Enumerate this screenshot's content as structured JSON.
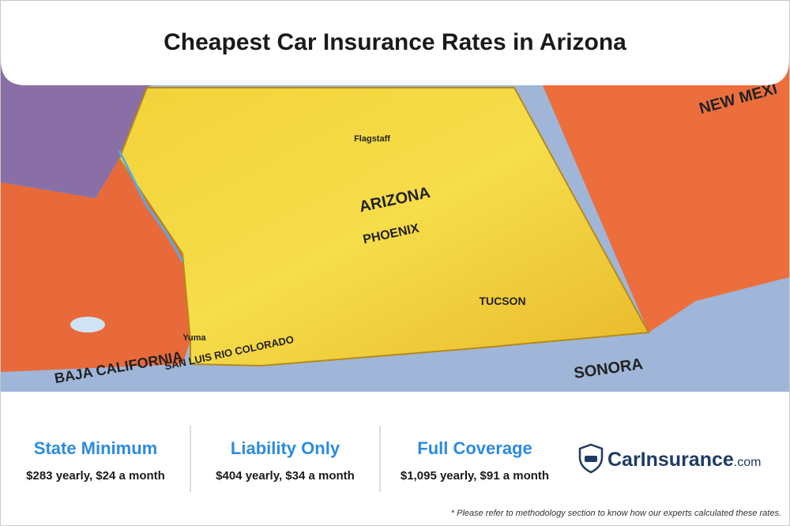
{
  "header": {
    "title": "Cheapest Car Insurance Rates in Arizona"
  },
  "map": {
    "labels": [
      "ARIZONA",
      "PHOENIX",
      "TUCSON",
      "NEW MEXI",
      "SONORA",
      "BAJA CALIFORNIA",
      "SAN LUIS RIO COLORADO",
      "Flagstaff",
      "Yuma"
    ]
  },
  "rates": [
    {
      "title": "State Minimum",
      "value": "$283 yearly, $24 a month"
    },
    {
      "title": "Liability Only",
      "value": "$404 yearly, $34 a month"
    },
    {
      "title": "Full Coverage",
      "value": "$1,095 yearly, $91 a month"
    }
  ],
  "logo": {
    "name": "CarInsurance",
    "suffix": ".com"
  },
  "footnote": "* Please refer to methodology section to know how our experts calculated these rates."
}
